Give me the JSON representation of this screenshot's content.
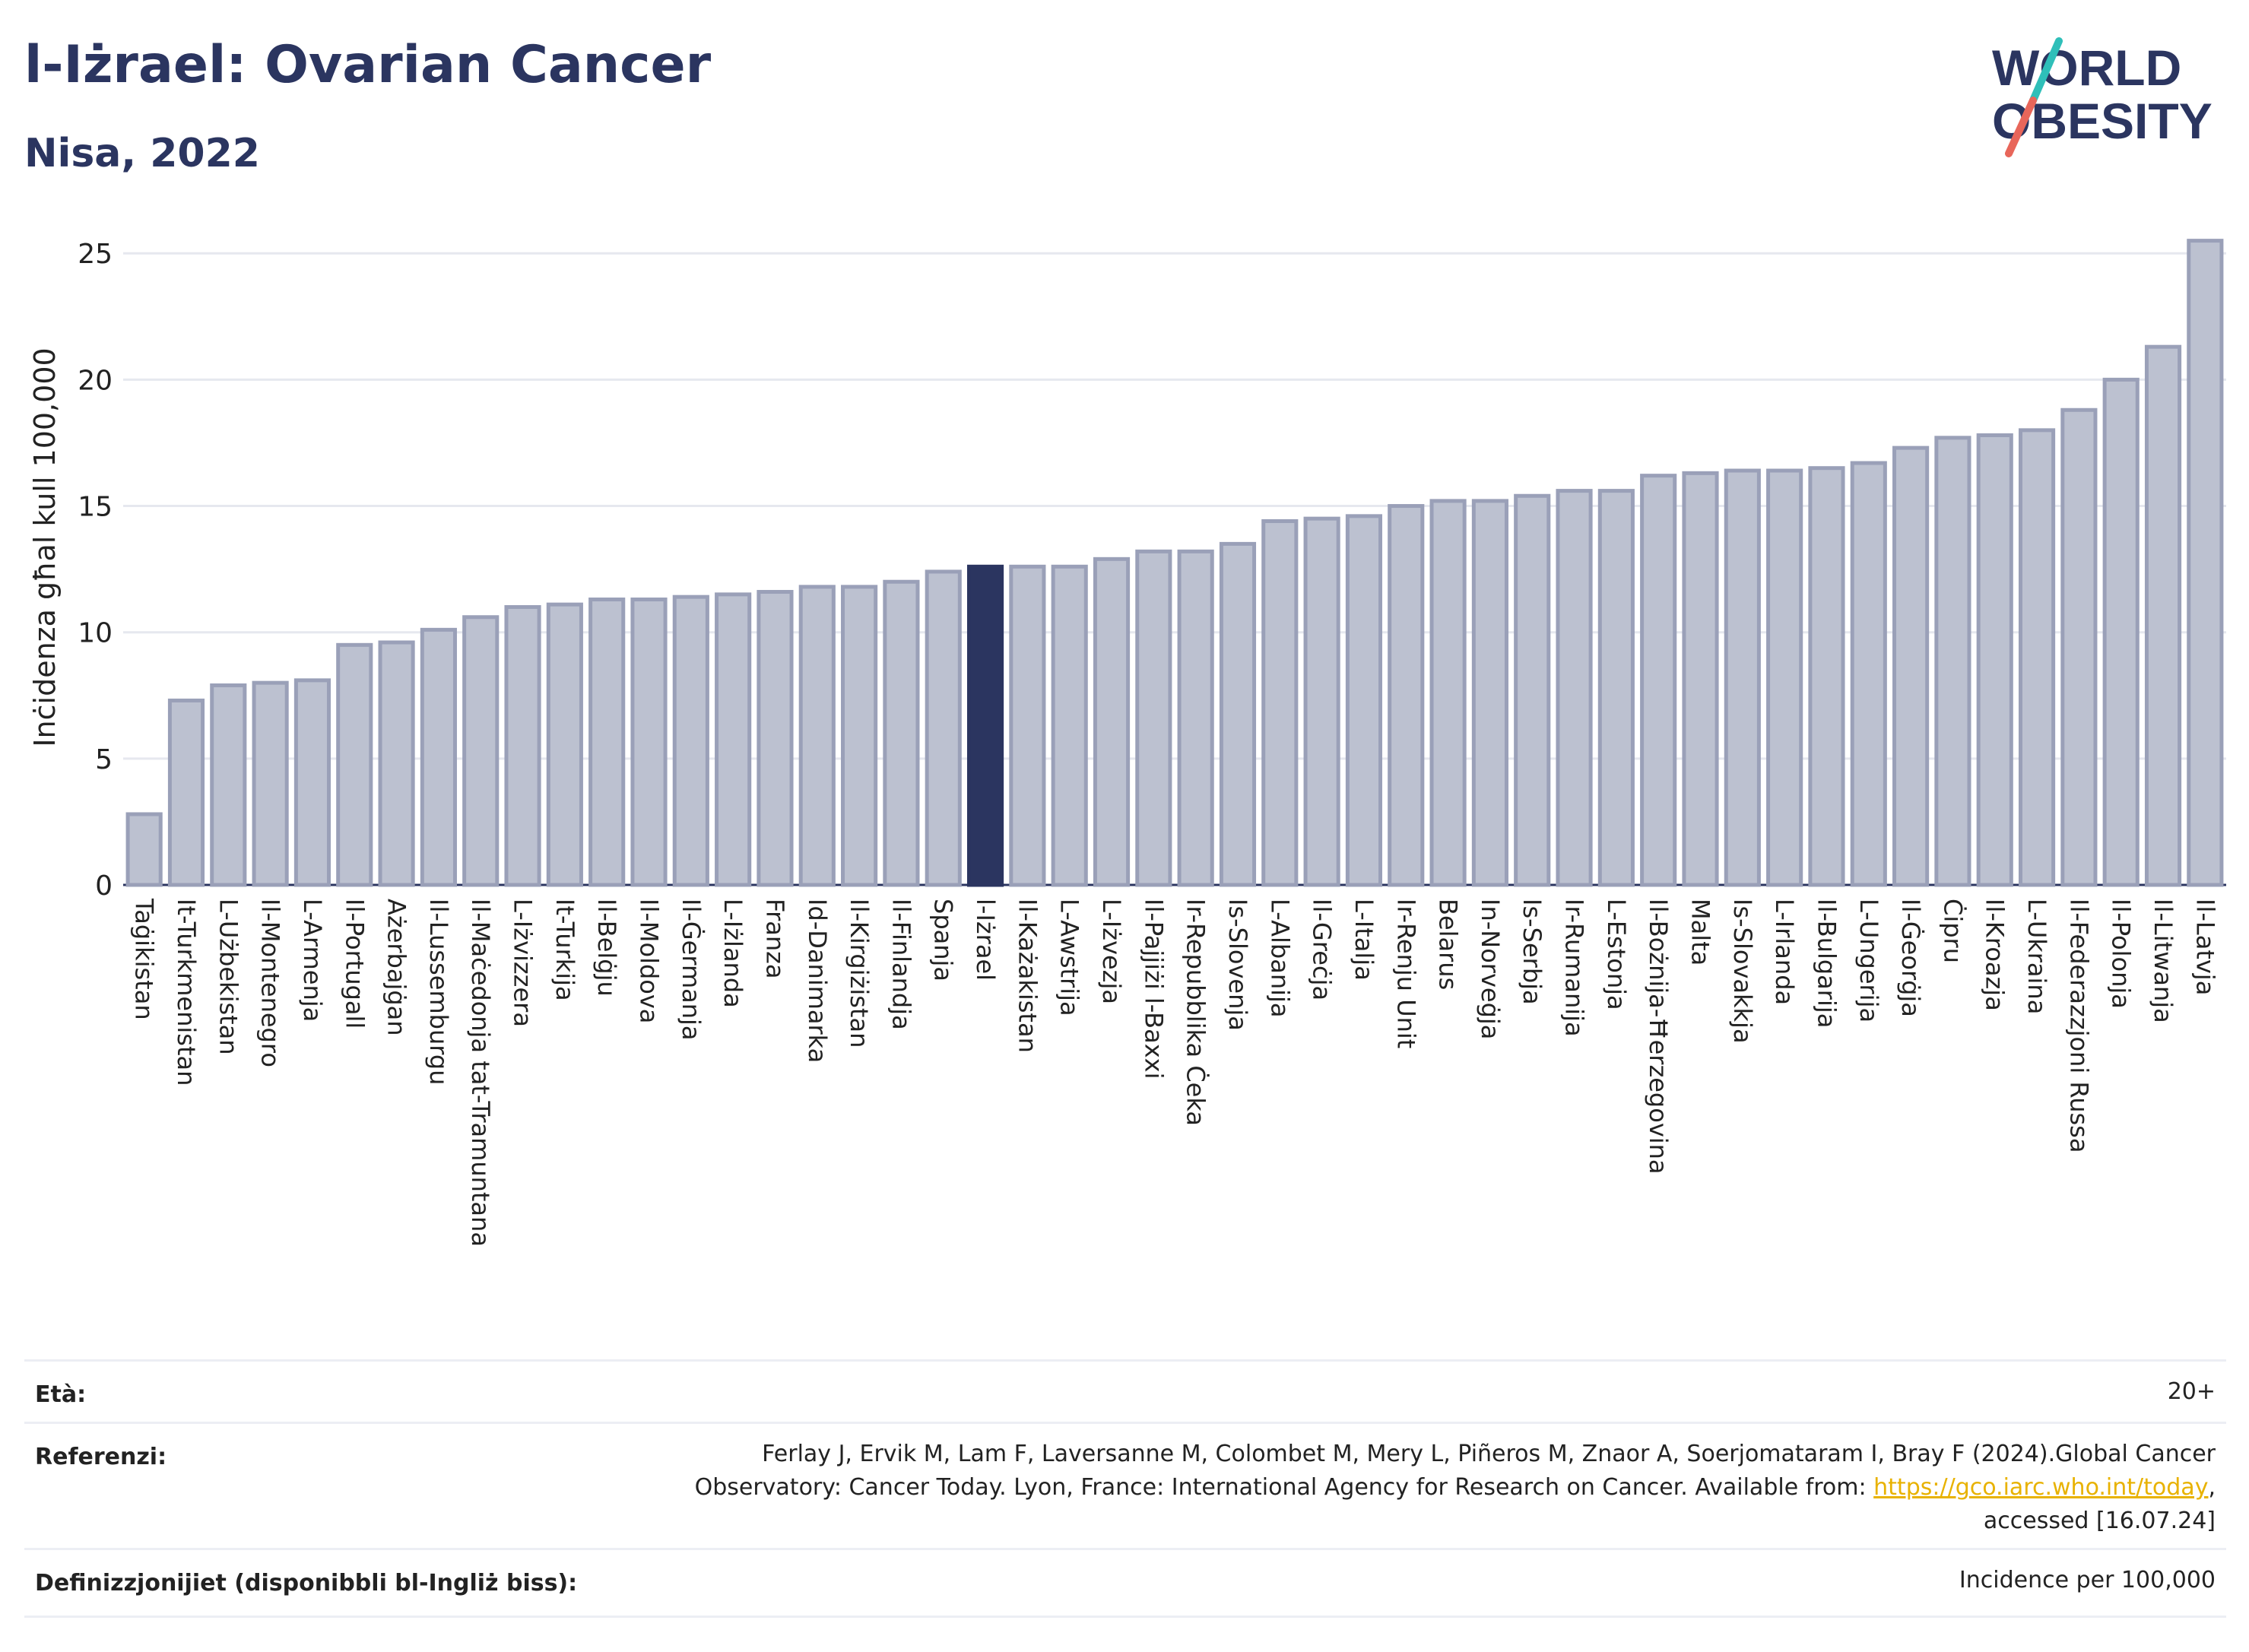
{
  "header": {
    "title": "l-Iżrael: Ovarian Cancer",
    "subtitle": "Nisa, 2022",
    "logo_line1": "WORLD",
    "logo_line2": "OBESITY"
  },
  "colors": {
    "title": "#2b3560",
    "bar": "#bcc1d0",
    "bar_stroke": "#9aa0b8",
    "highlight": "#2b3560",
    "logo_teal": "#2fbfb9",
    "logo_red": "#e8665a"
  },
  "chart_data": {
    "type": "bar",
    "ylabel": "Inċidenza għal kull 100,000",
    "ylim": [
      0,
      26
    ],
    "yticks": [
      0,
      5,
      10,
      15,
      20,
      25
    ],
    "grid": true,
    "highlight": "l-Iżrael",
    "categories": [
      "Taġikistan",
      "It-Turkmenistan",
      "L-Użbekistan",
      "Il-Montenegro",
      "L-Armenja",
      "Il-Portugall",
      "Ażerbajġan",
      "Il-Lussemburgu",
      "Il-Maċedonja tat-Tramuntana",
      "L-Iżvizzera",
      "It-Turkija",
      "Il-Belġju",
      "Il-Moldova",
      "Il-Ġermanja",
      "L-Iżlanda",
      "Franza",
      "Id-Danimarka",
      "Il-Kirgiżistan",
      "Il-Finlandja",
      "Spanja",
      "l-Iżrael",
      "Il-Każakistan",
      "L-Awstrija",
      "L-Iżvezja",
      "Il-Pajjiżi l-Baxxi",
      "Ir-Repubblika Ċeka",
      "Is-Slovenja",
      "L-Albanija",
      "Il-Greċja",
      "L-Italja",
      "Ir-Renju Unit",
      "Belarus",
      "In-Norveġja",
      "Is-Serbja",
      "Ir-Rumanija",
      "L-Estonja",
      "Il-Bożnija-Ħerzegovina",
      "Malta",
      "Is-Slovakkja",
      "L-Irlanda",
      "Il-Bulgarija",
      "L-Ungerija",
      "Il-Ġeorġja",
      "Ċipru",
      "Il-Kroazja",
      "L-Ukraina",
      "Il-Federazzjoni Russa",
      "Il-Polonja",
      "Il-Litwanja",
      "Il-Latvja"
    ],
    "values": [
      2.8,
      7.3,
      7.9,
      8.0,
      8.1,
      9.5,
      9.6,
      10.1,
      10.6,
      11.0,
      11.1,
      11.3,
      11.3,
      11.4,
      11.5,
      11.6,
      11.8,
      11.8,
      12.0,
      12.4,
      12.6,
      12.6,
      12.6,
      12.9,
      13.2,
      13.2,
      13.5,
      14.4,
      14.5,
      14.6,
      15.0,
      15.2,
      15.2,
      15.4,
      15.6,
      15.6,
      16.2,
      16.3,
      16.4,
      16.4,
      16.5,
      16.7,
      17.3,
      17.7,
      17.8,
      18.0,
      18.8,
      20.0,
      21.3,
      25.5
    ]
  },
  "meta": {
    "age_label": "Età:",
    "age_value": "20+",
    "ref_label": "Referenzi:",
    "ref_line1": "Ferlay J, Ervik M, Lam F, Laversanne M, Colombet M, Mery L, Piñeros M, Znaor A, Soerjomataram I, Bray F (2024).Global Cancer",
    "ref_line2_pre": "Observatory: Cancer Today. Lyon, France: International Agency for Research on Cancer. Available from: ",
    "ref_link": "https://gco.iarc.who.int/today",
    "ref_line2_post": ",",
    "ref_line3": "accessed [16.07.24]",
    "def_label": "Definizzjonijiet (disponibbli bl-Ingliż biss):",
    "def_value": "Incidence per 100,000"
  }
}
